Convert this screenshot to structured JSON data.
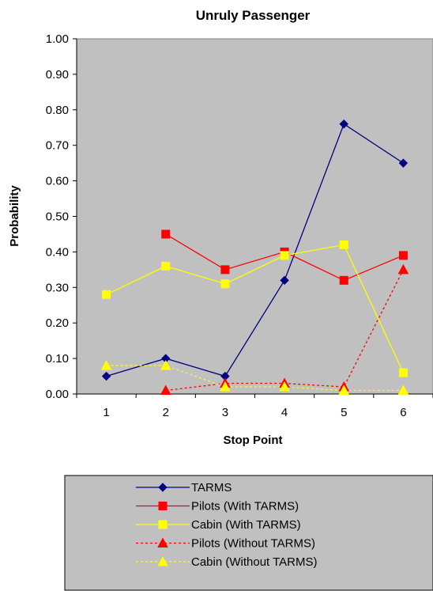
{
  "chart_data": {
    "type": "line",
    "title": "Unruly Passenger",
    "xlabel": "Stop Point",
    "ylabel": "Probability",
    "categories": [
      "1",
      "2",
      "3",
      "4",
      "5",
      "6"
    ],
    "ylim": [
      0,
      1
    ],
    "yticks": [
      "0.00",
      "0.10",
      "0.20",
      "0.30",
      "0.40",
      "0.50",
      "0.60",
      "0.70",
      "0.80",
      "0.90",
      "1.00"
    ],
    "plot_background": "#c0c0c0",
    "grid": false,
    "legend_position": "bottom",
    "series": [
      {
        "name": "TARMS",
        "color": "#000080",
        "marker": "diamond",
        "dash": "solid",
        "values": [
          0.05,
          0.1,
          0.05,
          0.32,
          0.76,
          0.65
        ]
      },
      {
        "name": "Pilots (With TARMS)",
        "color": "#ff0000",
        "marker": "square",
        "dash": "solid",
        "values": [
          null,
          0.45,
          0.35,
          0.4,
          0.32,
          0.39
        ]
      },
      {
        "name": "Cabin (With TARMS)",
        "color": "#ffff00",
        "marker": "square",
        "dash": "solid",
        "values": [
          0.28,
          0.36,
          0.31,
          0.39,
          0.42,
          0.06
        ]
      },
      {
        "name": "Pilots (Without TARMS)",
        "color": "#ff0000",
        "marker": "triangle",
        "dash": "dashed",
        "values": [
          null,
          0.01,
          0.03,
          0.03,
          0.02,
          0.35
        ]
      },
      {
        "name": "Cabin (Without TARMS)",
        "color": "#ffff00",
        "marker": "triangle",
        "dash": "dashed",
        "values": [
          0.08,
          0.08,
          0.02,
          0.02,
          0.01,
          0.01
        ]
      }
    ]
  }
}
